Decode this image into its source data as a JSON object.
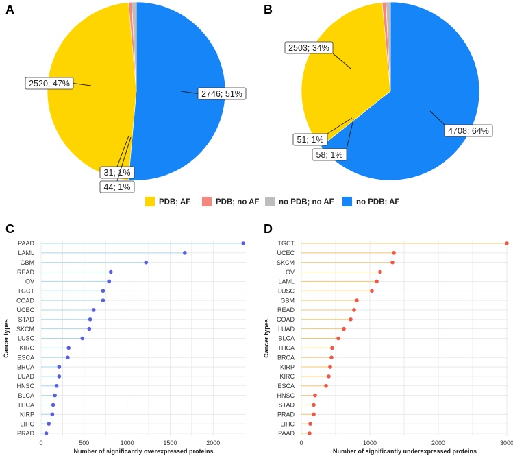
{
  "panels": [
    "A",
    "B",
    "C",
    "D"
  ],
  "colors": {
    "pdb_af": "#FFD500",
    "pdb_no_af": "#F4887C",
    "no_pdb_no_af": "#BDBDBD",
    "no_pdb_af": "#1685F7",
    "lollipop_c_line": "#aad8ec",
    "lollipop_c_point": "#5a5fe0",
    "lollipop_d_line": "#f7c66b",
    "lollipop_d_point": "#ef5747"
  },
  "legend": {
    "items": [
      {
        "label": "PDB; AF",
        "color": "#FFD500"
      },
      {
        "label": "PDB; no AF",
        "color": "#F4887C"
      },
      {
        "label": "no PDB; no AF",
        "color": "#BDBDBD"
      },
      {
        "label": "no PDB; AF",
        "color": "#1685F7"
      }
    ]
  },
  "chart_data": [
    {
      "panel": "A",
      "type": "pie",
      "categories": [
        "no PDB; AF",
        "PDB; AF",
        "PDB; no AF",
        "no PDB; no AF"
      ],
      "values": [
        2746,
        2520,
        31,
        44
      ],
      "labels": [
        "2746; 51%",
        "2520; 47%",
        "31; 1%",
        "44; 1%"
      ]
    },
    {
      "panel": "B",
      "type": "pie",
      "categories": [
        "no PDB; AF",
        "PDB; AF",
        "PDB; no AF",
        "no PDB; no AF"
      ],
      "values": [
        4708,
        2503,
        51,
        58
      ],
      "labels": [
        "4708; 64%",
        "2503; 34%",
        "51; 1%",
        "58; 1%"
      ]
    },
    {
      "panel": "C",
      "type": "scatter",
      "style": "lollipop",
      "categories": [
        "PAAD",
        "LAML",
        "GBM",
        "READ",
        "OV",
        "TGCT",
        "COAD",
        "UCEC",
        "STAD",
        "SKCM",
        "LUSC",
        "KIRC",
        "ESCA",
        "BRCA",
        "LUAD",
        "HNSC",
        "BLCA",
        "THCA",
        "KIRP",
        "LIHC",
        "PRAD"
      ],
      "values": [
        2350,
        1670,
        1220,
        810,
        790,
        720,
        720,
        610,
        570,
        560,
        480,
        320,
        310,
        210,
        210,
        180,
        160,
        140,
        130,
        90,
        60
      ],
      "xlabel": "Number of significantly overexpressed proteins",
      "ylabel": "Cancer types",
      "xlim": [
        0,
        2380
      ],
      "xticks": [
        0,
        500,
        1000,
        1500,
        2000
      ]
    },
    {
      "panel": "D",
      "type": "scatter",
      "style": "lollipop",
      "categories": [
        "TGCT",
        "UCEC",
        "SKCM",
        "OV",
        "LAML",
        "LUSC",
        "GBM",
        "READ",
        "COAD",
        "LUAD",
        "BLCA",
        "THCA",
        "BRCA",
        "KIRP",
        "KIRC",
        "ESCA",
        "HNSC",
        "STAD",
        "PRAD",
        "LIHC",
        "PAAD"
      ],
      "values": [
        3000,
        1350,
        1330,
        1150,
        1100,
        1030,
        810,
        770,
        720,
        620,
        540,
        450,
        440,
        420,
        400,
        360,
        200,
        180,
        180,
        130,
        120
      ],
      "xlabel": "Number of significantly underexpressed proteins",
      "ylabel": "Cancer types",
      "xlim": [
        0,
        3020
      ],
      "xticks": [
        0,
        1000,
        2000,
        3000
      ]
    }
  ]
}
